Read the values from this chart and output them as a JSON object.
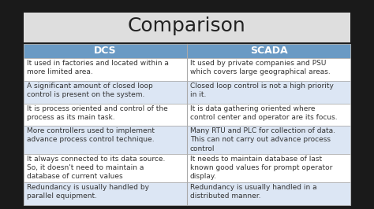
{
  "title": "Comparison",
  "title_fontsize": 18,
  "title_color": "#222222",
  "header": [
    "DCS",
    "SCADA"
  ],
  "header_bg": "#6A9AC4",
  "header_text_color": "#FFFFFF",
  "header_fontsize": 9,
  "rows": [
    [
      "It used in factories and located within a\nmore limited area.",
      "It used by private companies and PSU\nwhich covers large geographical areas."
    ],
    [
      "A significant amount of closed loop\ncontrol is present on the system.",
      "Closed loop control is not a high priority\nin it."
    ],
    [
      "It is process oriented and control of the\nprocess as its main task.",
      "It is data gathering oriented where\ncontrol center and operator are its focus."
    ],
    [
      "More controllers used to implement\nadvance process control technique.",
      "Many RTU and PLC for collection of data.\nThis can not carry out advance process\ncontrol"
    ],
    [
      "It always connected to its data source.\nSo, it doesn't need to maintain a\ndatabase of current values",
      "It needs to maintain database of last\nknown good values for prompt operator\ndisplay."
    ],
    [
      "Redundancy is usually handled by\nparallel equipment.",
      "Redundancy is usually handled in a\ndistributed manner."
    ]
  ],
  "row_colors": [
    "#FFFFFF",
    "#DCE6F4",
    "#FFFFFF",
    "#DCE6F4",
    "#FFFFFF",
    "#DCE6F4"
  ],
  "cell_text_color": "#333333",
  "cell_fontsize": 6.5,
  "background_color": "#FFFFFF",
  "border_color": "#AAAAAA",
  "fig_bg": "#1a1a1a",
  "table_bg": "#EEEEEE",
  "title_area_bg": "#DDDDDD"
}
